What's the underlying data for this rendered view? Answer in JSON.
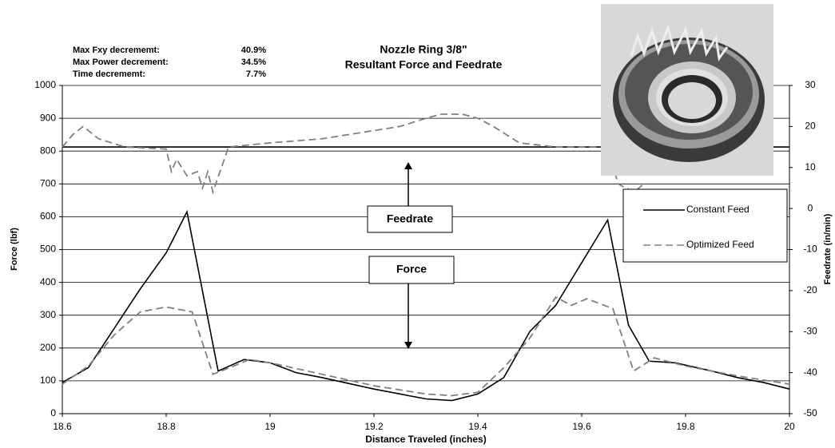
{
  "chart_data": {
    "type": "line",
    "title": [
      "Nozzle Ring 3/8\"",
      "Resultant Force and Feedrate"
    ],
    "annotations": [
      {
        "label": "Max Fxy decrememt:",
        "value": "40.9%"
      },
      {
        "label": "Max Power decrement:",
        "value": "34.5%"
      },
      {
        "label": "Time decrememt:",
        "value": "7.7%"
      }
    ],
    "boxes": [
      "Feedrate",
      "Force"
    ],
    "x_label": "Distance Traveled (inches)",
    "y_label": "Force (lbf)",
    "y2_label": "Feedrate (in/min)",
    "xlim": [
      18.6,
      20
    ],
    "xticks": [
      18.6,
      18.8,
      19,
      19.2,
      19.4,
      19.6,
      19.8,
      20
    ],
    "ylim": [
      0,
      1000
    ],
    "yticks": [
      0,
      100,
      200,
      300,
      400,
      500,
      600,
      700,
      800,
      900,
      1000
    ],
    "y2lim": [
      -50,
      30
    ],
    "y2ticks": [
      -50,
      -40,
      -30,
      -20,
      -10,
      0,
      10,
      20,
      30
    ],
    "grid": true,
    "series": [
      {
        "name": "Constant Feed",
        "color": "#000000",
        "dash": false,
        "x": [
          18.6,
          18.65,
          18.7,
          18.75,
          18.8,
          18.84,
          18.9,
          18.95,
          19.0,
          19.05,
          19.1,
          19.2,
          19.25,
          19.3,
          19.35,
          19.4,
          19.45,
          19.5,
          19.55,
          19.6,
          19.65,
          19.69,
          19.73,
          19.78,
          19.85,
          19.9,
          19.95,
          20.0
        ],
        "values": [
          95,
          140,
          260,
          380,
          490,
          615,
          130,
          165,
          155,
          125,
          110,
          75,
          60,
          45,
          40,
          60,
          110,
          250,
          330,
          460,
          590,
          270,
          160,
          155,
          130,
          110,
          95,
          75
        ]
      },
      {
        "name": "Optimized Feed",
        "color": "#808080",
        "dash": true,
        "x": [
          18.6,
          18.65,
          18.7,
          18.75,
          18.8,
          18.85,
          18.89,
          18.93,
          18.96,
          19.0,
          19.1,
          19.2,
          19.3,
          19.35,
          19.4,
          19.45,
          19.5,
          19.55,
          19.58,
          19.61,
          19.66,
          19.7,
          19.74,
          19.8,
          19.9,
          20.0
        ],
        "values": [
          90,
          145,
          240,
          310,
          325,
          310,
          120,
          145,
          165,
          155,
          120,
          85,
          60,
          55,
          65,
          140,
          230,
          355,
          330,
          350,
          320,
          130,
          170,
          145,
          115,
          90
        ]
      },
      {
        "color": "#000000",
        "dash": false,
        "axis": "y2",
        "x": [
          18.6,
          20.0
        ],
        "values": [
          15,
          15
        ]
      },
      {
        "color": "#808080",
        "dash": true,
        "axis": "y2",
        "x": [
          18.6,
          18.62,
          18.64,
          18.67,
          18.72,
          18.8,
          18.81,
          18.82,
          18.84,
          18.86,
          18.87,
          18.88,
          18.89,
          18.92,
          19.0,
          19.1,
          19.15,
          19.2,
          19.25,
          19.3,
          19.33,
          19.37,
          19.4,
          19.43,
          19.48,
          19.55,
          19.65,
          19.67,
          19.7,
          19.72
        ],
        "values": [
          15,
          18,
          20,
          17,
          15,
          14.5,
          9,
          12,
          8,
          9,
          5,
          9,
          4,
          15,
          16,
          17,
          18,
          19,
          20,
          22,
          23,
          23,
          22,
          20,
          16,
          15,
          15,
          6,
          4,
          6
        ]
      }
    ]
  }
}
